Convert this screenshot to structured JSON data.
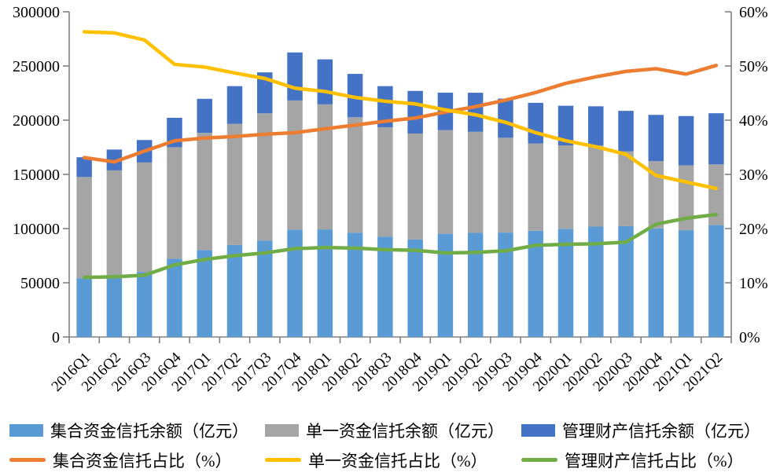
{
  "chart_data": {
    "type": "combo-stacked-bar-line",
    "background": "#ffffff",
    "grid": false,
    "legend_position": "bottom",
    "categories": [
      "2016Q1",
      "2016Q2",
      "2016Q3",
      "2016Q4",
      "2017Q1",
      "2017Q2",
      "2017Q3",
      "2017Q4",
      "2018Q1",
      "2018Q2",
      "2018Q3",
      "2018Q4",
      "2019Q1",
      "2019Q2",
      "2019Q3",
      "2019Q4",
      "2020Q1",
      "2020Q2",
      "2020Q3",
      "2020Q4",
      "2021Q1",
      "2021Q2"
    ],
    "left_axis": {
      "min": 0,
      "max": 300000,
      "step": 50000,
      "tick_labels": [
        "0",
        "50000",
        "100000",
        "150000",
        "200000",
        "250000",
        "300000"
      ]
    },
    "right_axis": {
      "min": 0,
      "max": 60,
      "step": 10,
      "tick_labels": [
        "0%",
        "10%",
        "20%",
        "30%",
        "40%",
        "50%",
        "60%"
      ]
    },
    "axis_color": "#808080",
    "bar_series": [
      {
        "name": "集合资金信托余额（亿元）",
        "color": "#5B9BD5",
        "values": [
          54200,
          55900,
          60000,
          72200,
          80200,
          85000,
          89000,
          99100,
          99200,
          96200,
          92500,
          90000,
          95200,
          96000,
          96300,
          98000,
          99800,
          101800,
          102200,
          100200,
          98500,
          103200
        ]
      },
      {
        "name": "单一资金信托余额（亿元）",
        "color": "#A5A5A5",
        "values": [
          93400,
          97800,
          101000,
          102900,
          108100,
          111600,
          117300,
          119100,
          115400,
          106500,
          101000,
          97700,
          95600,
          93300,
          87500,
          80500,
          77000,
          74800,
          69000,
          62100,
          59800,
          56000
        ]
      },
      {
        "name": "管理财产信托余额（亿元）",
        "color": "#4472C4",
        "values": [
          18200,
          19200,
          20700,
          27100,
          31400,
          34800,
          37800,
          44300,
          41500,
          40000,
          37900,
          39300,
          34600,
          36000,
          36100,
          37500,
          36500,
          36200,
          37400,
          42600,
          45500,
          47200
        ]
      }
    ],
    "line_series": [
      {
        "name": "集合资金信托占比（%）",
        "color": "#ED7D31",
        "values": [
          33.1,
          32.3,
          34.3,
          36.2,
          36.7,
          37.0,
          37.4,
          37.7,
          38.4,
          39.1,
          39.8,
          40.4,
          41.5,
          42.5,
          43.7,
          45.1,
          46.8,
          48.0,
          49.0,
          49.5,
          48.5,
          50.1
        ]
      },
      {
        "name": "单一资金信托占比（%）",
        "color": "#FFC000",
        "values": [
          56.3,
          56.1,
          54.8,
          50.3,
          49.8,
          48.7,
          47.7,
          45.9,
          45.3,
          44.2,
          43.5,
          43.0,
          41.9,
          41.0,
          39.6,
          37.7,
          36.2,
          35.1,
          33.7,
          29.8,
          28.6,
          27.4
        ]
      },
      {
        "name": "管理财产信托占比（%）",
        "color": "#70AD47",
        "values": [
          11.0,
          11.1,
          11.4,
          13.3,
          14.3,
          15.0,
          15.5,
          16.3,
          16.5,
          16.4,
          16.1,
          16.0,
          15.5,
          15.6,
          15.9,
          16.9,
          17.1,
          17.2,
          17.5,
          20.8,
          21.9,
          22.6
        ]
      }
    ]
  }
}
